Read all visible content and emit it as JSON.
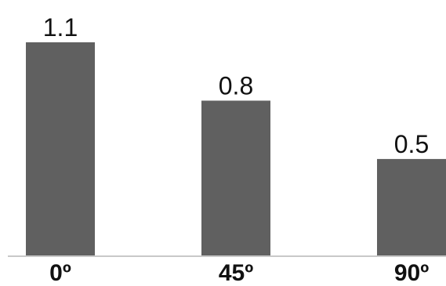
{
  "chart_data": {
    "type": "bar",
    "categories": [
      "0º",
      "45º",
      "90º"
    ],
    "values": [
      1.1,
      0.8,
      0.5
    ],
    "value_labels": [
      "1.1",
      "0.8",
      "0.5"
    ],
    "title": "",
    "xlabel": "",
    "ylabel": "",
    "ylim": [
      0,
      1.1
    ],
    "grid": false,
    "legend": "none",
    "bar_color": "#606060",
    "axis_color": "#c8c8c8"
  }
}
